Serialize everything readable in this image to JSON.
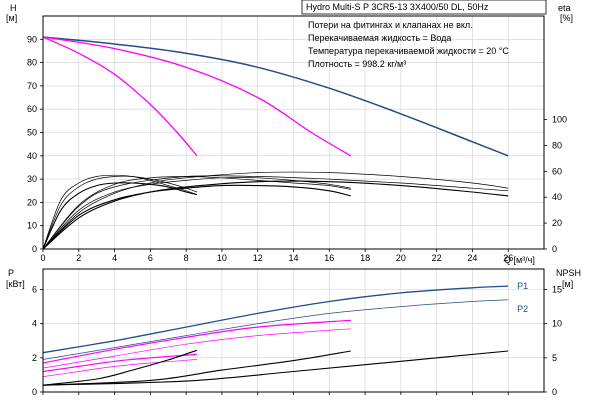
{
  "chart_data": [
    {
      "id": "qh",
      "type": "line",
      "title": "Hydro Multi-S P 3CR5-13 3X400/50 DL, 50Hz",
      "info_lines": [
        "Потери на фитингах и клапанах не вкл.",
        "Перекачиваемая жидкость = Вода",
        "Температура перекачиваемой жидкости = 20 °C",
        "Плотность = 998.2 кг/м³"
      ],
      "xlabel": "Q [м³/ч]",
      "ylabel_left": [
        "H",
        "[м]"
      ],
      "ylabel_right": [
        "eta",
        "[%]"
      ],
      "xlim": [
        0,
        28
      ],
      "ylim_left": [
        0,
        100
      ],
      "ylim_right": [
        0,
        180
      ],
      "x_ticks": [
        0,
        2,
        4,
        6,
        8,
        10,
        12,
        14,
        16,
        18,
        20,
        22,
        24,
        26
      ],
      "y_ticks_left": [
        0,
        10,
        20,
        30,
        40,
        50,
        60,
        70,
        80,
        90
      ],
      "y_ticks_right": [
        0,
        20,
        40,
        60,
        80,
        100
      ],
      "grid": true,
      "series": [
        {
          "kind": "head",
          "axis": "left",
          "color": "#1f4e8c",
          "width": 1.5,
          "x": [
            0,
            4,
            8,
            12,
            16,
            20,
            24,
            26
          ],
          "y": [
            91,
            88,
            84,
            78,
            69,
            58,
            46,
            40
          ]
        },
        {
          "kind": "head",
          "axis": "left",
          "color": "#ff00ff",
          "width": 1.3,
          "x": [
            0,
            4,
            8,
            12,
            15,
            17.2
          ],
          "y": [
            91,
            86,
            78,
            65,
            50,
            40
          ]
        },
        {
          "kind": "head",
          "axis": "left",
          "color": "#ff00ff",
          "width": 1.3,
          "x": [
            0,
            2,
            4,
            6,
            7.5,
            8.6
          ],
          "y": [
            91,
            84,
            75,
            62,
            50,
            40
          ]
        },
        {
          "kind": "eta",
          "axis": "right",
          "color": "#000000",
          "width": 1.1,
          "x": [
            0,
            2,
            4,
            6,
            8,
            12,
            16,
            20,
            24,
            26
          ],
          "y": [
            0,
            24,
            37,
            44,
            48,
            52,
            52,
            49,
            44,
            41
          ]
        },
        {
          "kind": "eta",
          "axis": "right",
          "color": "#000000",
          "width": 0.7,
          "x": [
            0,
            2,
            4,
            6,
            8,
            12,
            16,
            20,
            24,
            26
          ],
          "y": [
            0,
            28,
            43,
            51,
            55,
            59,
            59,
            56,
            51,
            47
          ]
        },
        {
          "kind": "eta",
          "axis": "right",
          "color": "#000000",
          "width": 0.7,
          "x": [
            0,
            2,
            4,
            8,
            12,
            16,
            20,
            24,
            26
          ],
          "y": [
            0,
            33,
            48,
            56,
            56,
            54,
            51,
            47,
            45
          ]
        },
        {
          "kind": "eta",
          "axis": "right",
          "color": "#000000",
          "width": 1.1,
          "x": [
            0,
            2,
            4,
            6,
            8,
            10,
            12,
            14,
            16,
            17.2
          ],
          "y": [
            0,
            26,
            38,
            44,
            47,
            49,
            49,
            48,
            45,
            41
          ]
        },
        {
          "kind": "eta",
          "axis": "right",
          "color": "#000000",
          "width": 0.7,
          "x": [
            0,
            2,
            4,
            6,
            8,
            10,
            12,
            14,
            16,
            17.2
          ],
          "y": [
            0,
            30,
            44,
            50,
            53,
            55,
            55,
            53,
            50,
            47
          ]
        },
        {
          "kind": "eta",
          "axis": "right",
          "color": "#000000",
          "width": 0.7,
          "x": [
            0,
            2,
            4,
            6,
            8,
            10,
            12,
            14,
            16,
            17.2
          ],
          "y": [
            0,
            34,
            50,
            55,
            56,
            55,
            53,
            51,
            49,
            46
          ]
        },
        {
          "kind": "eta",
          "axis": "right",
          "color": "#000000",
          "width": 1.1,
          "x": [
            0,
            1,
            2,
            3,
            4,
            5,
            6,
            7,
            8,
            8.6
          ],
          "y": [
            0,
            30,
            43,
            49,
            51,
            51,
            50,
            48,
            44,
            42
          ]
        },
        {
          "kind": "eta",
          "axis": "right",
          "color": "#000000",
          "width": 0.7,
          "x": [
            0,
            1,
            2,
            3,
            4,
            5,
            6,
            7,
            8,
            8.6
          ],
          "y": [
            0,
            34,
            48,
            54,
            56,
            56,
            54,
            51,
            47,
            44
          ]
        },
        {
          "kind": "eta",
          "axis": "right",
          "color": "#000000",
          "width": 0.7,
          "x": [
            0,
            1,
            2,
            3,
            4,
            5,
            6,
            7,
            8,
            8.6
          ],
          "y": [
            0,
            38,
            51,
            56,
            57,
            56,
            53,
            49,
            45,
            42
          ]
        }
      ]
    },
    {
      "id": "qp",
      "type": "line",
      "ylabel_left": [
        "P",
        "[кВт]"
      ],
      "ylabel_right": [
        "NPSH",
        "[м]"
      ],
      "xlim": [
        0,
        28
      ],
      "ylim_left": [
        0,
        7.2
      ],
      "ylim_right": [
        0,
        18
      ],
      "y_ticks_left": [
        0,
        2,
        4,
        6
      ],
      "y_ticks_right": [
        0,
        5,
        10,
        15
      ],
      "grid": true,
      "series": [
        {
          "kind": "power",
          "name": "P1",
          "axis": "left",
          "color": "#1f4e8c",
          "width": 1.3,
          "x": [
            0,
            4,
            8,
            12,
            16,
            20,
            24,
            26
          ],
          "y": [
            2.3,
            3.0,
            3.8,
            4.6,
            5.3,
            5.8,
            6.1,
            6.2
          ],
          "label_at": [
            26.5,
            6.2
          ]
        },
        {
          "kind": "power",
          "name": "P2",
          "axis": "left",
          "color": "#1f4e8c",
          "width": 0.7,
          "x": [
            0,
            4,
            8,
            12,
            16,
            20,
            24,
            26
          ],
          "y": [
            1.9,
            2.6,
            3.3,
            4.0,
            4.6,
            5.0,
            5.3,
            5.4
          ],
          "label_at": [
            26.5,
            4.85
          ]
        },
        {
          "kind": "power",
          "axis": "left",
          "color": "#ff00ff",
          "width": 1.2,
          "x": [
            0,
            4,
            8,
            12,
            17.2
          ],
          "y": [
            1.7,
            2.5,
            3.2,
            3.8,
            4.2
          ]
        },
        {
          "kind": "power",
          "axis": "left",
          "color": "#ff00ff",
          "width": 0.7,
          "x": [
            0,
            4,
            8,
            12,
            17.2
          ],
          "y": [
            1.4,
            2.1,
            2.8,
            3.3,
            3.7
          ]
        },
        {
          "kind": "power",
          "axis": "left",
          "color": "#ff00ff",
          "width": 1.2,
          "x": [
            0,
            2,
            4,
            6,
            8.6
          ],
          "y": [
            1.2,
            1.5,
            1.8,
            2.0,
            2.2
          ]
        },
        {
          "kind": "power",
          "axis": "left",
          "color": "#ff00ff",
          "width": 0.7,
          "x": [
            0,
            2,
            4,
            6,
            8.6
          ],
          "y": [
            0.9,
            1.2,
            1.5,
            1.7,
            1.9
          ]
        },
        {
          "kind": "npsh",
          "axis": "right",
          "color": "#000000",
          "width": 1.1,
          "x": [
            0,
            8,
            14,
            20,
            26
          ],
          "y": [
            1.0,
            1.6,
            3.0,
            4.5,
            6.0
          ]
        },
        {
          "kind": "npsh",
          "axis": "right",
          "color": "#000000",
          "width": 1.1,
          "x": [
            0,
            6,
            10,
            14,
            17.2
          ],
          "y": [
            1.0,
            1.7,
            3.2,
            4.6,
            6.0
          ]
        },
        {
          "kind": "npsh",
          "axis": "right",
          "color": "#000000",
          "width": 1.1,
          "x": [
            0,
            3,
            5,
            7,
            8.6
          ],
          "y": [
            1.0,
            1.9,
            3.2,
            4.7,
            6.1
          ]
        }
      ]
    }
  ]
}
